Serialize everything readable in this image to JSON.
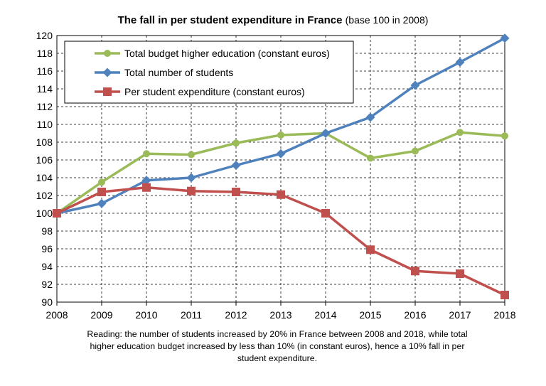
{
  "chart_data": {
    "type": "line",
    "title": "The fall in per student expenditure in France",
    "subtitle": "(base 100 in 2008)",
    "xlabel": "",
    "ylabel": "",
    "ylim": [
      90,
      120
    ],
    "ytick_step": 2,
    "grid": true,
    "legend_position": "top-left",
    "x": [
      "2008",
      "2009",
      "2010",
      "2011",
      "2012",
      "2013",
      "2014",
      "2015",
      "2016",
      "2017",
      "2018"
    ],
    "series": [
      {
        "name": "Total budget higher education (constant euros)",
        "color": "#9BBB59",
        "marker": "circle",
        "values": [
          100,
          103.5,
          106.7,
          106.6,
          107.9,
          108.8,
          109.0,
          106.2,
          107.0,
          109.1,
          108.7
        ]
      },
      {
        "name": "Total number of students",
        "color": "#4F81BD",
        "marker": "diamond",
        "values": [
          100,
          101.1,
          103.7,
          104.0,
          105.4,
          106.7,
          109.0,
          110.8,
          114.4,
          117.0,
          119.7
        ]
      },
      {
        "name": "Per student expenditure (constant euros)",
        "color": "#C0504D",
        "marker": "square",
        "values": [
          100,
          102.4,
          102.9,
          102.5,
          102.4,
          102.1,
          100.0,
          95.9,
          93.5,
          93.2,
          90.8
        ]
      }
    ]
  },
  "note": "Reading: the number of students increased by 20% in France between 2008 and 2018, while total higher education budget increased by less than 10% (in constant euros), hence a 10% fall in per student expenditure."
}
